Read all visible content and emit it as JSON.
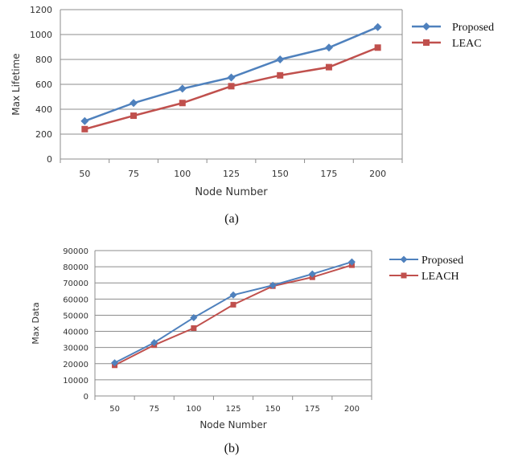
{
  "chart_data": [
    {
      "type": "line",
      "categories": [
        "50",
        "75",
        "100",
        "125",
        "150",
        "175",
        "200"
      ],
      "series": [
        {
          "name": "Proposed",
          "values": [
            305,
            450,
            565,
            655,
            800,
            895,
            1060
          ],
          "color": "#4F81BD",
          "marker": "diamond"
        },
        {
          "name": "LEAC",
          "values": [
            240,
            348,
            450,
            585,
            672,
            738,
            895
          ],
          "color": "#C0504D",
          "marker": "square"
        }
      ],
      "xlabel": "Node Number",
      "ylabel": "Max Lifetime",
      "ylim": [
        0,
        1200
      ],
      "yticks": [
        0,
        200,
        400,
        600,
        800,
        1000,
        1200
      ],
      "grid": true,
      "legend_position": "right",
      "caption": "(a)"
    },
    {
      "type": "line",
      "categories": [
        "50",
        "75",
        "100",
        "125",
        "150",
        "175",
        "200"
      ],
      "series": [
        {
          "name": "Proposed",
          "values": [
            20500,
            33000,
            48500,
            62500,
            68500,
            75500,
            83000
          ],
          "color": "#4F81BD",
          "marker": "diamond"
        },
        {
          "name": "LEACH",
          "values": [
            19000,
            31500,
            42000,
            56500,
            68000,
            73500,
            81000
          ],
          "color": "#C0504D",
          "marker": "square"
        }
      ],
      "xlabel": "Node Number",
      "ylabel": "Max Data",
      "ylim": [
        0,
        90000
      ],
      "yticks": [
        0,
        10000,
        20000,
        30000,
        40000,
        50000,
        60000,
        70000,
        80000,
        90000
      ],
      "grid": true,
      "legend_position": "right",
      "caption": "(b)"
    }
  ]
}
